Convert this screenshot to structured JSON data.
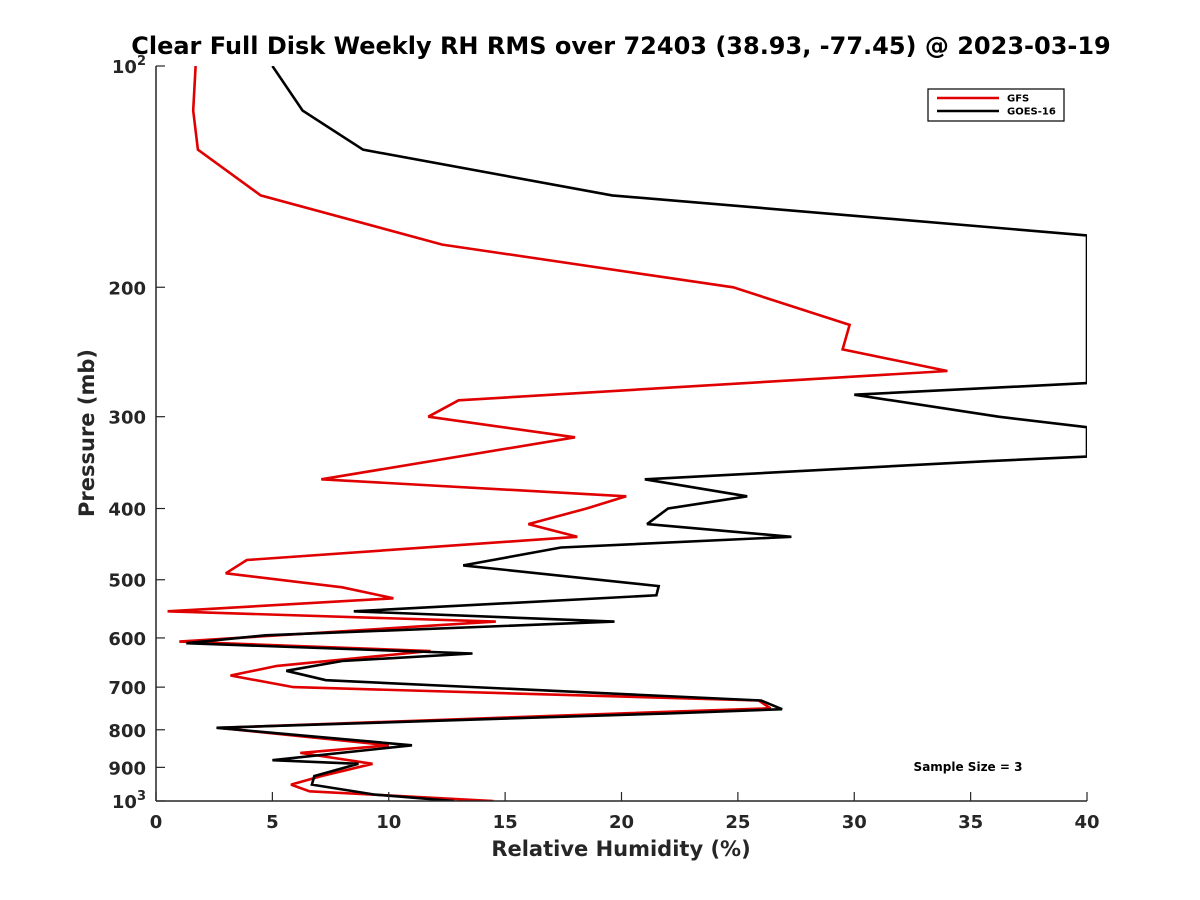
{
  "chart_data": {
    "type": "line",
    "title": "Clear Full Disk Weekly RH RMS over 72403 (38.93, -77.45) @ 2023-03-19",
    "xlabel": "Relative Humidity (%)",
    "ylabel": "Pressure (mb)",
    "xlim": [
      0,
      40
    ],
    "ylim": [
      100,
      1000
    ],
    "y_scale": "log",
    "y_reversed": true,
    "grid": false,
    "legend_position": "top-right",
    "x_ticks": [
      0,
      5,
      10,
      15,
      20,
      25,
      30,
      35,
      40
    ],
    "y_ticks": [
      {
        "value": 100,
        "base": "10",
        "exp": "2"
      },
      {
        "value": 200,
        "label": "200"
      },
      {
        "value": 300,
        "label": "300"
      },
      {
        "value": 400,
        "label": "400"
      },
      {
        "value": 500,
        "label": "500"
      },
      {
        "value": 600,
        "label": "600"
      },
      {
        "value": 700,
        "label": "700"
      },
      {
        "value": 800,
        "label": "800"
      },
      {
        "value": 900,
        "label": "900"
      },
      {
        "value": 1000,
        "base": "10",
        "exp": "3"
      }
    ],
    "series": [
      {
        "name": "GFS",
        "color": "#e00000",
        "points": [
          [
            1.7,
            100
          ],
          [
            1.6,
            115
          ],
          [
            1.8,
            130
          ],
          [
            4.5,
            150
          ],
          [
            12.3,
            175
          ],
          [
            24.8,
            200
          ],
          [
            29.8,
            225
          ],
          [
            29.5,
            243
          ],
          [
            34.0,
            260
          ],
          [
            13.0,
            285
          ],
          [
            11.7,
            300
          ],
          [
            18.0,
            320
          ],
          [
            7.1,
            365
          ],
          [
            20.2,
            385
          ],
          [
            18.5,
            400
          ],
          [
            16.0,
            420
          ],
          [
            18.1,
            437
          ],
          [
            3.9,
            470
          ],
          [
            3.0,
            490
          ],
          [
            8.0,
            512
          ],
          [
            10.2,
            530
          ],
          [
            0.5,
            552
          ],
          [
            14.6,
            570
          ],
          [
            1.0,
            607
          ],
          [
            11.8,
            625
          ],
          [
            5.2,
            655
          ],
          [
            3.2,
            675
          ],
          [
            5.9,
            700
          ],
          [
            25.9,
            730
          ],
          [
            26.4,
            748
          ],
          [
            20.0,
            760
          ],
          [
            2.7,
            795
          ],
          [
            10.0,
            840
          ],
          [
            6.2,
            860
          ],
          [
            9.3,
            890
          ],
          [
            7.1,
            925
          ],
          [
            5.8,
            950
          ],
          [
            6.6,
            970
          ],
          [
            14.5,
            1000
          ]
        ]
      },
      {
        "name": "GOES-16",
        "color": "#000000",
        "points": [
          [
            5.0,
            100
          ],
          [
            6.3,
            115
          ],
          [
            8.9,
            130
          ],
          [
            19.6,
            150
          ],
          [
            40.0,
            170
          ],
          [
            40.0,
            270
          ],
          [
            30.0,
            280
          ],
          [
            36.2,
            300
          ],
          [
            40.0,
            310
          ],
          [
            40.0,
            340
          ],
          [
            35.6,
            345
          ],
          [
            21.0,
            365
          ],
          [
            25.4,
            385
          ],
          [
            22.0,
            400
          ],
          [
            21.1,
            420
          ],
          [
            27.3,
            437
          ],
          [
            17.4,
            452
          ],
          [
            13.2,
            478
          ],
          [
            21.6,
            510
          ],
          [
            21.5,
            525
          ],
          [
            8.5,
            552
          ],
          [
            19.7,
            570
          ],
          [
            4.7,
            595
          ],
          [
            1.3,
            610
          ],
          [
            13.6,
            630
          ],
          [
            8.0,
            645
          ],
          [
            5.6,
            665
          ],
          [
            7.3,
            685
          ],
          [
            26.0,
            730
          ],
          [
            26.9,
            750
          ],
          [
            22.0,
            760
          ],
          [
            2.6,
            795
          ],
          [
            11.0,
            840
          ],
          [
            5.0,
            880
          ],
          [
            8.7,
            890
          ],
          [
            6.8,
            925
          ],
          [
            6.7,
            950
          ],
          [
            9.4,
            980
          ],
          [
            12.8,
            1000
          ]
        ]
      }
    ],
    "annotations": [
      "Sample Size = 3"
    ]
  }
}
